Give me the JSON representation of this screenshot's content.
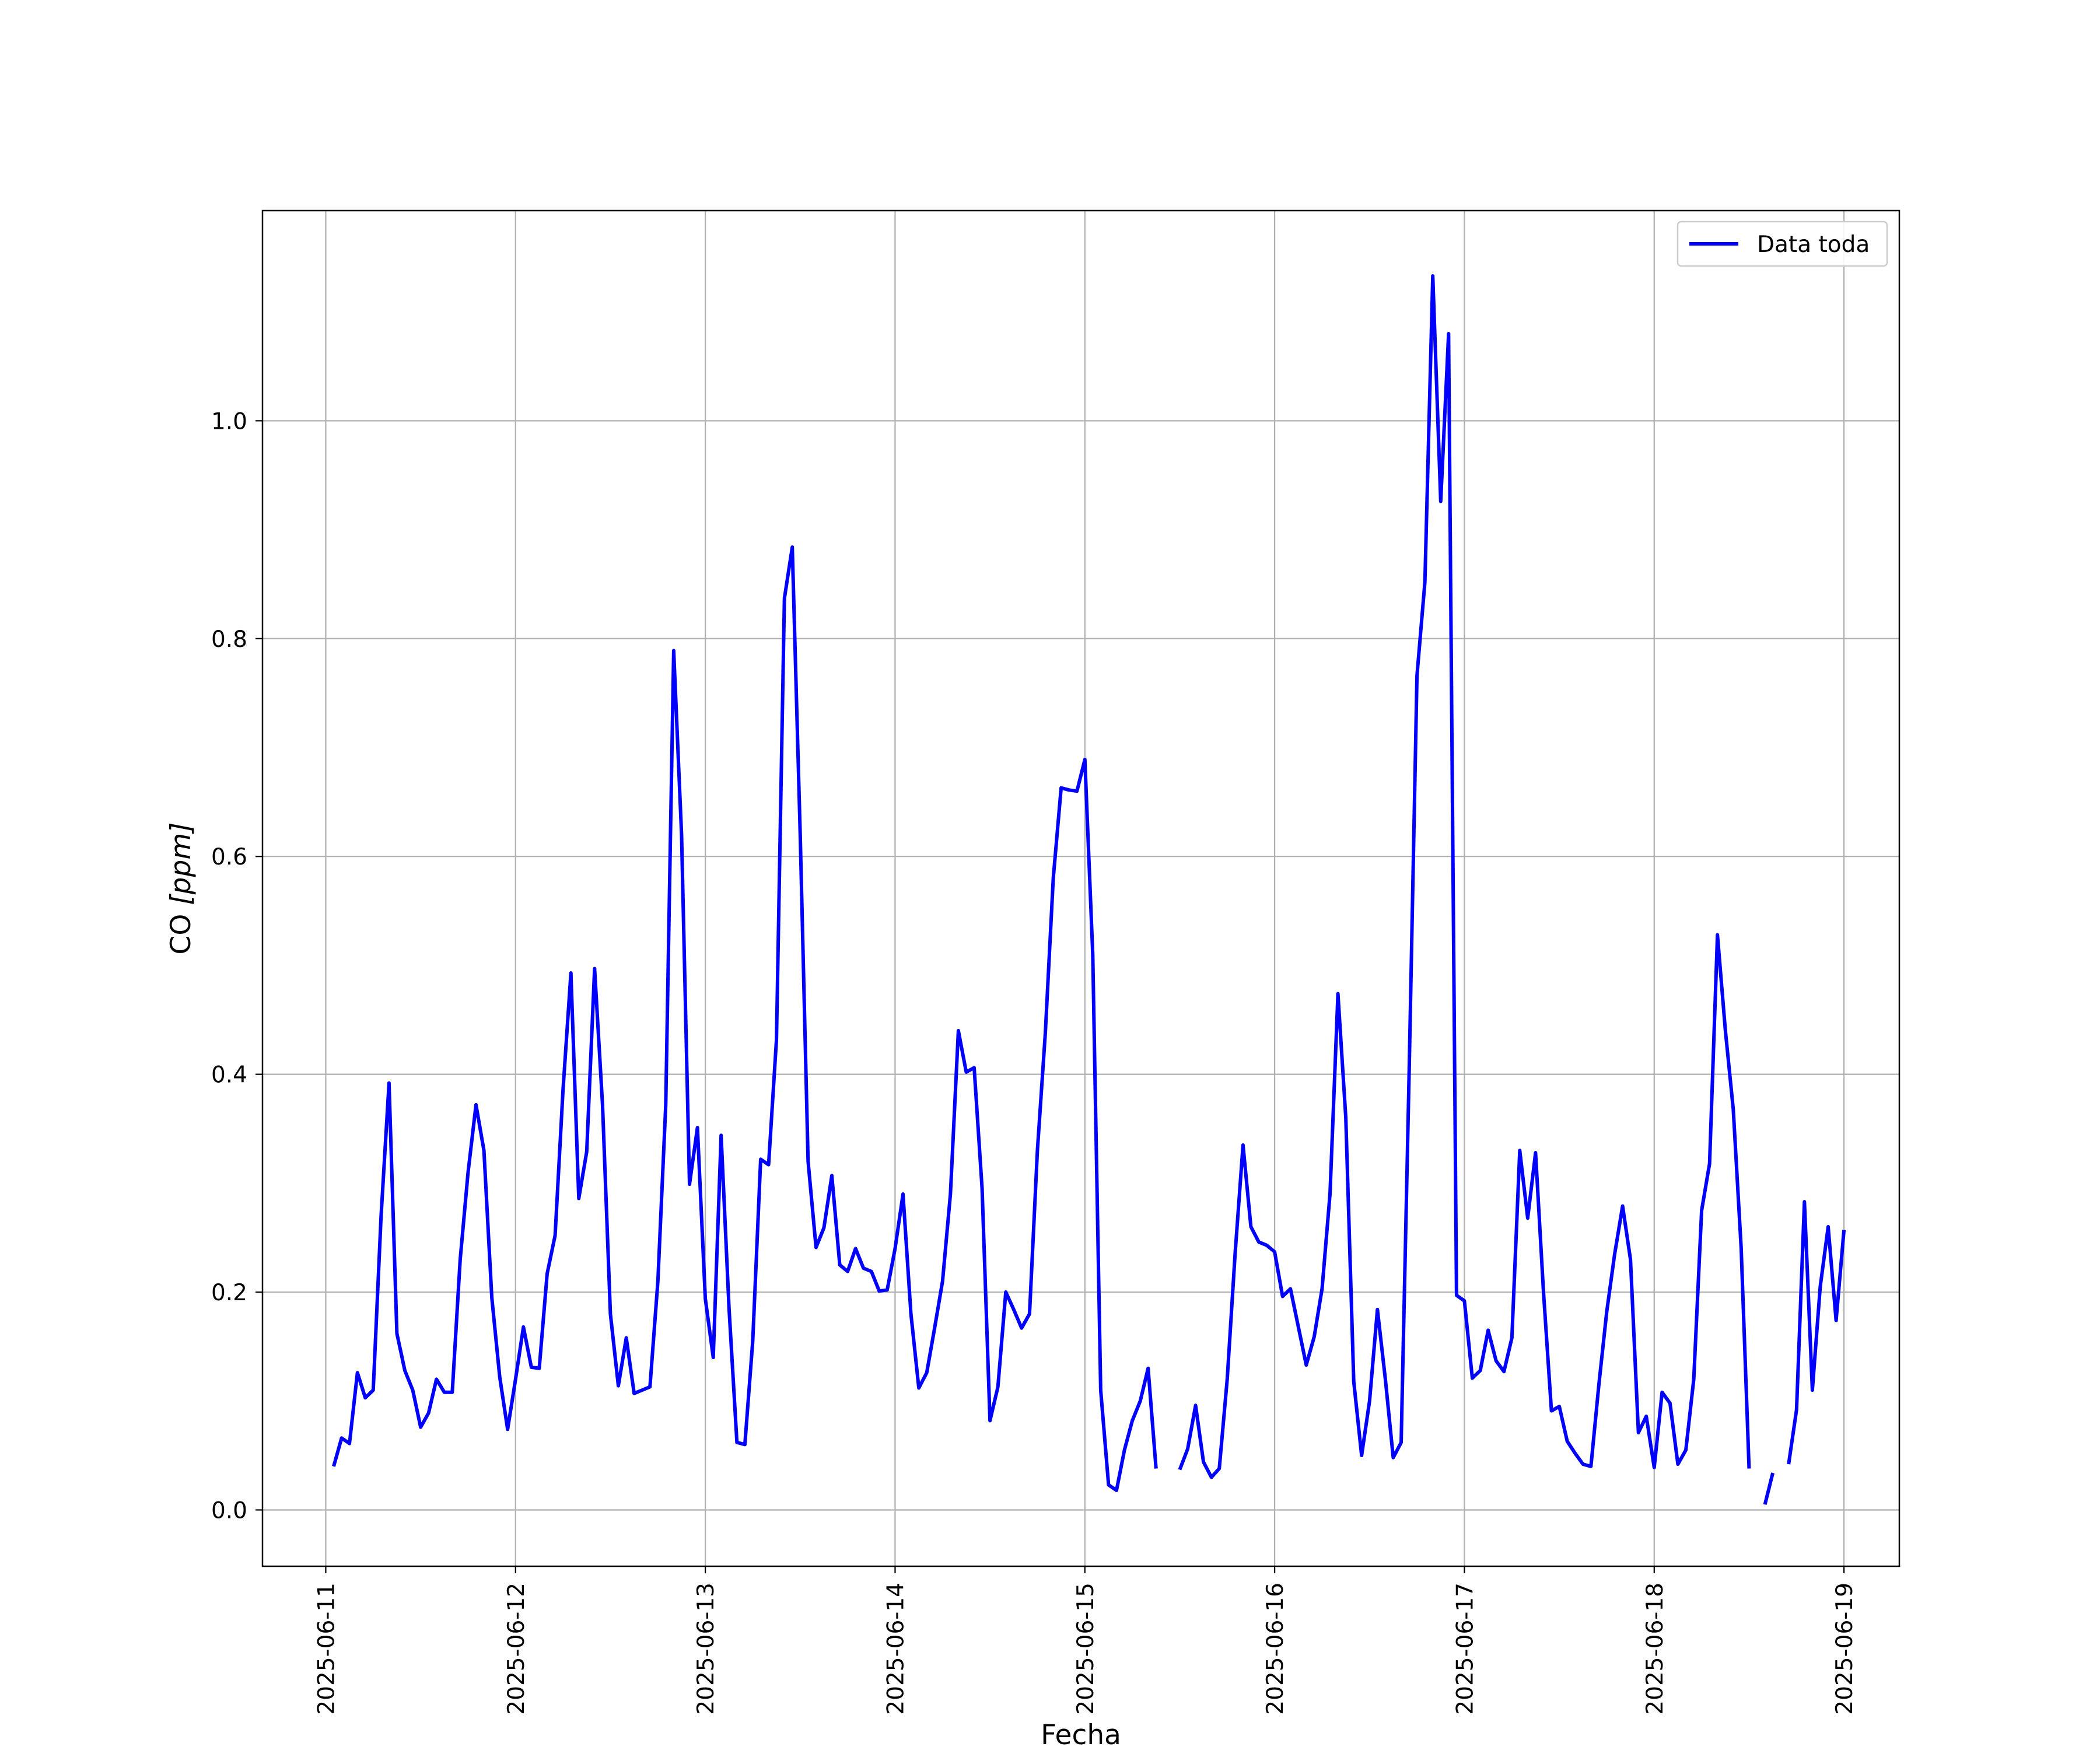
{
  "chart_data": {
    "type": "line",
    "title": "",
    "xlabel": "Fecha",
    "ylabel_prefix": "CO ",
    "ylabel_unit": "[ppm]",
    "xlim": [
      "2025-06-10T16:00",
      "2025-06-19T07:00"
    ],
    "ylim": [
      -0.0517,
      1.193
    ],
    "x_ticks": [
      "2025-06-11",
      "2025-06-12",
      "2025-06-13",
      "2025-06-14",
      "2025-06-15",
      "2025-06-16",
      "2025-06-17",
      "2025-06-18",
      "2025-06-19"
    ],
    "y_ticks": [
      "0.0",
      "0.2",
      "0.4",
      "0.6",
      "0.8",
      "1.0"
    ],
    "grid": true,
    "legend_position": "top-right",
    "colors": {
      "series": "#0000ff",
      "grid": "#b0b0b0"
    },
    "series": [
      {
        "name": "Data toda",
        "points": [
          [
            "2025-06-11T01:00",
            0.04
          ],
          [
            "2025-06-11T02:00",
            0.066
          ],
          [
            "2025-06-11T03:00",
            0.061
          ],
          [
            "2025-06-11T04:00",
            0.126
          ],
          [
            "2025-06-11T05:00",
            0.103
          ],
          [
            "2025-06-11T06:00",
            0.11
          ],
          [
            "2025-06-11T07:00",
            0.27
          ],
          [
            "2025-06-11T08:00",
            0.392
          ],
          [
            "2025-06-11T09:00",
            0.162
          ],
          [
            "2025-06-11T10:00",
            0.128
          ],
          [
            "2025-06-11T11:00",
            0.11
          ],
          [
            "2025-06-11T12:00",
            0.076
          ],
          [
            "2025-06-11T13:00",
            0.089
          ],
          [
            "2025-06-11T14:00",
            0.12
          ],
          [
            "2025-06-11T15:00",
            0.108
          ],
          [
            "2025-06-11T16:00",
            0.108
          ],
          [
            "2025-06-11T17:00",
            0.23
          ],
          [
            "2025-06-11T18:00",
            0.31
          ],
          [
            "2025-06-11T19:00",
            0.372
          ],
          [
            "2025-06-11T20:00",
            0.33
          ],
          [
            "2025-06-11T21:00",
            0.195
          ],
          [
            "2025-06-11T22:00",
            0.122
          ],
          [
            "2025-06-11T23:00",
            0.074
          ],
          [
            "2025-06-12T00:00",
            0.12
          ],
          [
            "2025-06-12T01:00",
            0.168
          ],
          [
            "2025-06-12T02:00",
            0.131
          ],
          [
            "2025-06-12T03:00",
            0.13
          ],
          [
            "2025-06-12T04:00",
            0.217
          ],
          [
            "2025-06-12T05:00",
            0.252
          ],
          [
            "2025-06-12T06:00",
            0.385
          ],
          [
            "2025-06-12T07:00",
            0.493
          ],
          [
            "2025-06-12T08:00",
            0.286
          ],
          [
            "2025-06-12T09:00",
            0.329
          ],
          [
            "2025-06-12T10:00",
            0.497
          ],
          [
            "2025-06-12T11:00",
            0.372
          ],
          [
            "2025-06-12T12:00",
            0.18
          ],
          [
            "2025-06-12T13:00",
            0.114
          ],
          [
            "2025-06-12T14:00",
            0.158
          ],
          [
            "2025-06-12T15:00",
            0.107
          ],
          [
            "2025-06-12T16:00",
            0.11
          ],
          [
            "2025-06-12T17:00",
            0.113
          ],
          [
            "2025-06-12T18:00",
            0.21
          ],
          [
            "2025-06-12T19:00",
            0.372
          ],
          [
            "2025-06-12T20:00",
            0.789
          ],
          [
            "2025-06-12T21:00",
            0.62
          ],
          [
            "2025-06-12T22:00",
            0.299
          ],
          [
            "2025-06-12T23:00",
            0.351
          ],
          [
            "2025-06-13T00:00",
            0.194
          ],
          [
            "2025-06-13T01:00",
            0.14
          ],
          [
            "2025-06-13T02:00",
            0.344
          ],
          [
            "2025-06-13T03:00",
            0.185
          ],
          [
            "2025-06-13T04:00",
            0.062
          ],
          [
            "2025-06-13T05:00",
            0.06
          ],
          [
            "2025-06-13T06:00",
            0.155
          ],
          [
            "2025-06-13T07:00",
            0.322
          ],
          [
            "2025-06-13T08:00",
            0.317
          ],
          [
            "2025-06-13T09:00",
            0.432
          ],
          [
            "2025-06-13T10:00",
            0.837
          ],
          [
            "2025-06-13T11:00",
            0.884
          ],
          [
            "2025-06-13T12:00",
            0.62
          ],
          [
            "2025-06-13T13:00",
            0.32
          ],
          [
            "2025-06-13T14:00",
            0.241
          ],
          [
            "2025-06-13T15:00",
            0.259
          ],
          [
            "2025-06-13T16:00",
            0.307
          ],
          [
            "2025-06-13T17:00",
            0.225
          ],
          [
            "2025-06-13T18:00",
            0.219
          ],
          [
            "2025-06-13T19:00",
            0.24
          ],
          [
            "2025-06-13T20:00",
            0.222
          ],
          [
            "2025-06-13T21:00",
            0.219
          ],
          [
            "2025-06-13T22:00",
            0.201
          ],
          [
            "2025-06-13T23:00",
            0.202
          ],
          [
            "2025-06-14T00:00",
            0.24
          ],
          [
            "2025-06-14T01:00",
            0.29
          ],
          [
            "2025-06-14T02:00",
            0.18
          ],
          [
            "2025-06-14T03:00",
            0.112
          ],
          [
            "2025-06-14T04:00",
            0.126
          ],
          [
            "2025-06-14T05:00",
            0.167
          ],
          [
            "2025-06-14T06:00",
            0.21
          ],
          [
            "2025-06-14T07:00",
            0.29
          ],
          [
            "2025-06-14T08:00",
            0.44
          ],
          [
            "2025-06-14T09:00",
            0.402
          ],
          [
            "2025-06-14T10:00",
            0.406
          ],
          [
            "2025-06-14T11:00",
            0.295
          ],
          [
            "2025-06-14T12:00",
            0.082
          ],
          [
            "2025-06-14T13:00",
            0.113
          ],
          [
            "2025-06-14T14:00",
            0.2
          ],
          [
            "2025-06-14T15:00",
            0.184
          ],
          [
            "2025-06-14T16:00",
            0.167
          ],
          [
            "2025-06-14T17:00",
            0.18
          ],
          [
            "2025-06-14T18:00",
            0.33
          ],
          [
            "2025-06-14T19:00",
            0.438
          ],
          [
            "2025-06-14T20:00",
            0.58
          ],
          [
            "2025-06-14T21:00",
            0.663
          ],
          [
            "2025-06-14T22:00",
            0.661
          ],
          [
            "2025-06-14T23:00",
            0.66
          ],
          [
            "2025-06-15T00:00",
            0.689
          ],
          [
            "2025-06-15T01:00",
            0.51
          ],
          [
            "2025-06-15T02:00",
            0.11
          ],
          [
            "2025-06-15T03:00",
            0.023
          ],
          [
            "2025-06-15T04:00",
            0.018
          ],
          [
            "2025-06-15T05:00",
            0.055
          ],
          [
            "2025-06-15T06:00",
            0.082
          ],
          [
            "2025-06-15T07:00",
            0.1
          ],
          [
            "2025-06-15T08:00",
            0.13
          ],
          [
            "2025-06-15T09:00",
            0.038
          ],
          null,
          [
            "2025-06-15T12:00",
            0.037
          ],
          [
            "2025-06-15T13:00",
            0.056
          ],
          [
            "2025-06-15T14:00",
            0.096
          ],
          [
            "2025-06-15T15:00",
            0.044
          ],
          [
            "2025-06-15T16:00",
            0.03
          ],
          [
            "2025-06-15T17:00",
            0.038
          ],
          [
            "2025-06-15T18:00",
            0.12
          ],
          [
            "2025-06-15T19:00",
            0.235
          ],
          [
            "2025-06-15T20:00",
            0.335
          ],
          [
            "2025-06-15T21:00",
            0.26
          ],
          [
            "2025-06-15T22:00",
            0.246
          ],
          [
            "2025-06-15T23:00",
            0.243
          ],
          [
            "2025-06-16T00:00",
            0.237
          ],
          [
            "2025-06-16T01:00",
            0.196
          ],
          [
            "2025-06-16T02:00",
            0.203
          ],
          [
            "2025-06-16T03:00",
            0.168
          ],
          [
            "2025-06-16T04:00",
            0.133
          ],
          [
            "2025-06-16T05:00",
            0.159
          ],
          [
            "2025-06-16T06:00",
            0.203
          ],
          [
            "2025-06-16T07:00",
            0.29
          ],
          [
            "2025-06-16T08:00",
            0.474
          ],
          [
            "2025-06-16T09:00",
            0.36
          ],
          [
            "2025-06-16T10:00",
            0.118
          ],
          [
            "2025-06-16T11:00",
            0.05
          ],
          [
            "2025-06-16T12:00",
            0.1
          ],
          [
            "2025-06-16T13:00",
            0.184
          ],
          [
            "2025-06-16T14:00",
            0.12
          ],
          [
            "2025-06-16T15:00",
            0.048
          ],
          [
            "2025-06-16T16:00",
            0.062
          ],
          [
            "2025-06-16T17:00",
            0.4
          ],
          [
            "2025-06-16T18:00",
            0.766
          ],
          [
            "2025-06-16T19:00",
            0.852
          ],
          [
            "2025-06-16T20:00",
            1.133
          ],
          [
            "2025-06-16T21:00",
            0.926
          ],
          [
            "2025-06-16T22:00",
            1.08
          ],
          [
            "2025-06-16T23:00",
            0.197
          ],
          [
            "2025-06-17T00:00",
            0.192
          ],
          [
            "2025-06-17T01:00",
            0.121
          ],
          [
            "2025-06-17T02:00",
            0.128
          ],
          [
            "2025-06-17T03:00",
            0.165
          ],
          [
            "2025-06-17T04:00",
            0.137
          ],
          [
            "2025-06-17T05:00",
            0.127
          ],
          [
            "2025-06-17T06:00",
            0.158
          ],
          [
            "2025-06-17T07:00",
            0.33
          ],
          [
            "2025-06-17T08:00",
            0.268
          ],
          [
            "2025-06-17T09:00",
            0.328
          ],
          [
            "2025-06-17T10:00",
            0.2
          ],
          [
            "2025-06-17T11:00",
            0.091
          ],
          [
            "2025-06-17T12:00",
            0.095
          ],
          [
            "2025-06-17T13:00",
            0.063
          ],
          [
            "2025-06-17T14:00",
            0.052
          ],
          [
            "2025-06-17T15:00",
            0.042
          ],
          [
            "2025-06-17T16:00",
            0.04
          ],
          [
            "2025-06-17T17:00",
            0.115
          ],
          [
            "2025-06-17T18:00",
            0.182
          ],
          [
            "2025-06-17T19:00",
            0.235
          ],
          [
            "2025-06-17T20:00",
            0.279
          ],
          [
            "2025-06-17T21:00",
            0.23
          ],
          [
            "2025-06-17T22:00",
            0.071
          ],
          [
            "2025-06-17T23:00",
            0.086
          ],
          [
            "2025-06-18T00:00",
            0.039
          ],
          [
            "2025-06-18T01:00",
            0.108
          ],
          [
            "2025-06-18T02:00",
            0.098
          ],
          [
            "2025-06-18T03:00",
            0.042
          ],
          [
            "2025-06-18T04:00",
            0.055
          ],
          [
            "2025-06-18T05:00",
            0.12
          ],
          [
            "2025-06-18T06:00",
            0.275
          ],
          [
            "2025-06-18T07:00",
            0.318
          ],
          [
            "2025-06-18T08:00",
            0.528
          ],
          [
            "2025-06-18T09:00",
            0.44
          ],
          [
            "2025-06-18T10:00",
            0.368
          ],
          [
            "2025-06-18T11:00",
            0.24
          ],
          [
            "2025-06-18T12:00",
            0.038
          ],
          null,
          [
            "2025-06-18T14:00",
            0.005
          ],
          [
            "2025-06-18T15:00",
            0.034
          ],
          null,
          [
            "2025-06-18T17:00",
            0.042
          ],
          [
            "2025-06-18T18:00",
            0.092
          ],
          [
            "2025-06-18T19:00",
            0.283
          ],
          [
            "2025-06-18T20:00",
            0.11
          ],
          [
            "2025-06-18T21:00",
            0.205
          ],
          [
            "2025-06-18T22:00",
            0.26
          ],
          [
            "2025-06-18T23:00",
            0.174
          ],
          [
            "2025-06-19T00:00",
            0.257
          ]
        ]
      }
    ]
  }
}
